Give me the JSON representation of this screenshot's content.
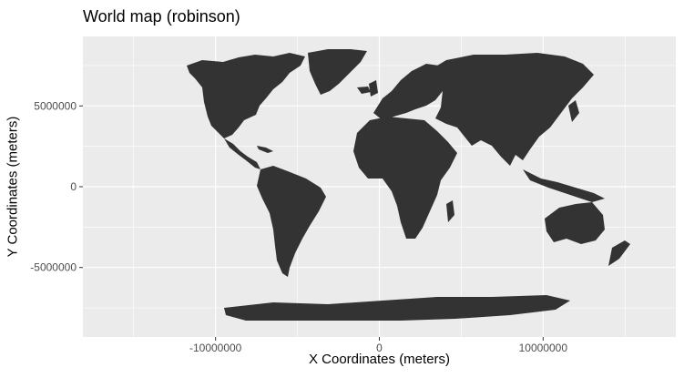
{
  "title": "World map (robinson)",
  "xlabel": "X Coordinates (meters)",
  "ylabel": "Y Coordinates (meters)",
  "colors": {
    "panel": "#ebebeb",
    "grid": "#ffffff",
    "land": "#333333",
    "tick_text": "#4d4d4d"
  },
  "x_ticks": [
    {
      "value": -10000000,
      "label": "-10000000"
    },
    {
      "value": 0,
      "label": "0"
    },
    {
      "value": 10000000,
      "label": "10000000"
    }
  ],
  "y_ticks": [
    {
      "value": 5000000,
      "label": "5000000"
    },
    {
      "value": 0,
      "label": "0"
    },
    {
      "value": -5000000,
      "label": "-5000000"
    }
  ],
  "xlim": [
    -18100000,
    18100000
  ],
  "ylim": [
    -9300000,
    9300000
  ],
  "chart_data": {
    "type": "map",
    "projection": "robinson",
    "features": [
      "North America",
      "Greenland",
      "South America",
      "Europe",
      "Africa",
      "Asia",
      "Australia",
      "Antarctica",
      "Japan",
      "New Zealand",
      "Indonesia",
      "United Kingdom",
      "Madagascar",
      "Iceland"
    ],
    "grid": true
  }
}
